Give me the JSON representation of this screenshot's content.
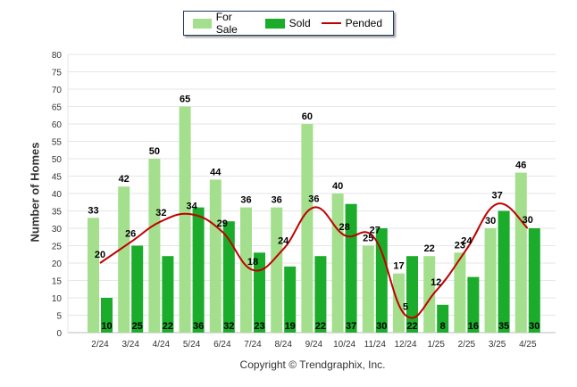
{
  "chart_data": {
    "type": "bar",
    "categories": [
      "2/24",
      "3/24",
      "4/24",
      "5/24",
      "6/24",
      "7/24",
      "8/24",
      "9/24",
      "10/24",
      "11/24",
      "12/24",
      "1/25",
      "2/25",
      "3/25",
      "4/25"
    ],
    "series": [
      {
        "name": "For Sale",
        "type": "bar",
        "color": "#a3df8c",
        "values": [
          33,
          42,
          50,
          65,
          44,
          36,
          36,
          60,
          40,
          25,
          17,
          22,
          23,
          30,
          46
        ]
      },
      {
        "name": "Sold",
        "type": "bar",
        "color": "#1aac2a",
        "values": [
          10,
          25,
          22,
          36,
          32,
          23,
          19,
          22,
          37,
          30,
          22,
          8,
          16,
          35,
          30
        ]
      },
      {
        "name": "Pended",
        "type": "line",
        "color": "#c00000",
        "values": [
          20,
          26,
          32,
          34,
          29,
          18,
          24,
          36,
          28,
          27,
          5,
          12,
          24,
          37,
          30
        ]
      }
    ],
    "ylabel": "Number of Homes",
    "xlabel": "",
    "ylim": [
      0,
      80
    ],
    "yticks": [
      0,
      5,
      10,
      15,
      20,
      25,
      30,
      35,
      40,
      45,
      50,
      55,
      60,
      65,
      70,
      75,
      80
    ],
    "grid": true,
    "legend_position": "top-center"
  },
  "copyright": "Copyright © Trendgraphix, Inc."
}
